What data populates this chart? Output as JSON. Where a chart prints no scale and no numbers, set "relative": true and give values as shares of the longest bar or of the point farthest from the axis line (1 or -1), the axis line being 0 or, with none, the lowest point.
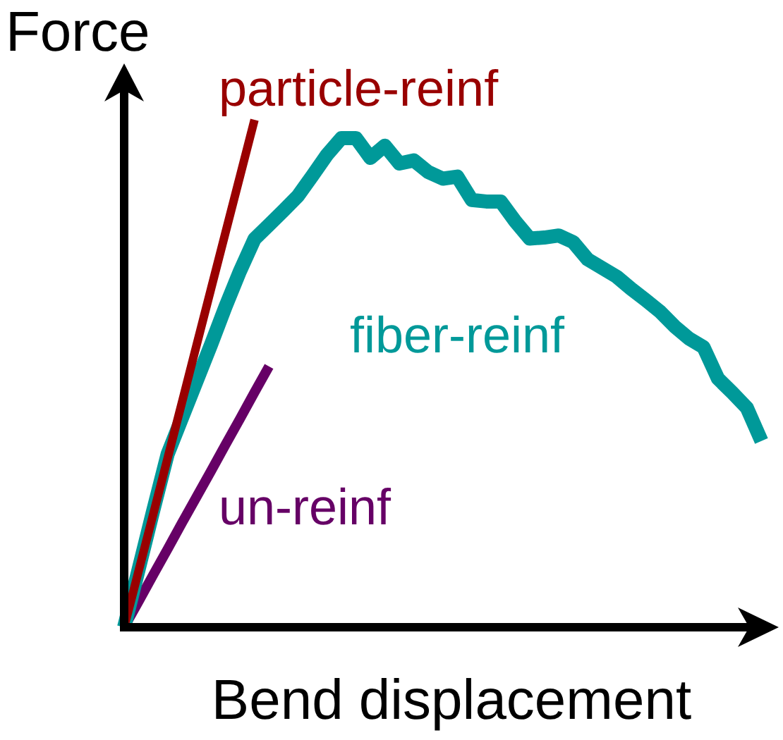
{
  "chart_data": {
    "type": "line",
    "relative": true,
    "xlabel": "Bend displacement",
    "ylabel": "Force",
    "marker": "none",
    "line_style": "solid",
    "categories": [
      null,
      null,
      null,
      null,
      null,
      null,
      null,
      null,
      null,
      null,
      null,
      null,
      null,
      null,
      null,
      null,
      null,
      null,
      null,
      null,
      null,
      null,
      null,
      null,
      null,
      null,
      null,
      null,
      null,
      null,
      null,
      null,
      null,
      null,
      null,
      null,
      null,
      null,
      null,
      null,
      null,
      null,
      null,
      null,
      null,
      null
    ],
    "series": [
      {
        "name": "particle-reinf",
        "color": "#990000",
        "values": [
          0,
          0.111,
          0.222,
          0.333,
          0.444,
          0.556,
          0.667,
          0.778,
          0.889,
          1,
          null,
          null,
          null,
          null,
          null,
          null,
          null,
          null,
          null,
          null,
          null,
          null,
          null,
          null,
          null,
          null,
          null,
          null,
          null,
          null,
          null,
          null,
          null,
          null,
          null,
          null,
          null,
          null,
          null,
          null,
          null,
          null,
          null,
          null,
          null,
          null
        ]
      },
      {
        "name": "fiber-reinf",
        "color": "#009999",
        "values": [
          0,
          0.114,
          0.229,
          0.341,
          0.413,
          0.485,
          0.557,
          0.632,
          0.702,
          0.765,
          0.793,
          0.821,
          0.85,
          0.89,
          0.931,
          0.964,
          0.964,
          0.925,
          0.949,
          0.914,
          0.92,
          0.897,
          0.884,
          0.888,
          0.842,
          0.839,
          0.839,
          0.8,
          0.766,
          0.768,
          0.772,
          0.759,
          0.725,
          0.708,
          0.691,
          0.667,
          0.645,
          0.622,
          0.593,
          0.569,
          0.552,
          0.49,
          0.462,
          0.432,
          0.367,
          null
        ]
      },
      {
        "name": "un-reinf",
        "color": "#660066",
        "values": [
          0,
          0.051,
          0.103,
          0.154,
          0.206,
          0.257,
          0.308,
          0.36,
          0.411,
          0.463,
          0.514,
          null,
          null,
          null,
          null,
          null,
          null,
          null,
          null,
          null,
          null,
          null,
          null,
          null,
          null,
          null,
          null,
          null,
          null,
          null,
          null,
          null,
          null,
          null,
          null,
          null,
          null,
          null,
          null,
          null,
          null,
          null,
          null,
          null,
          null,
          null
        ]
      }
    ]
  }
}
